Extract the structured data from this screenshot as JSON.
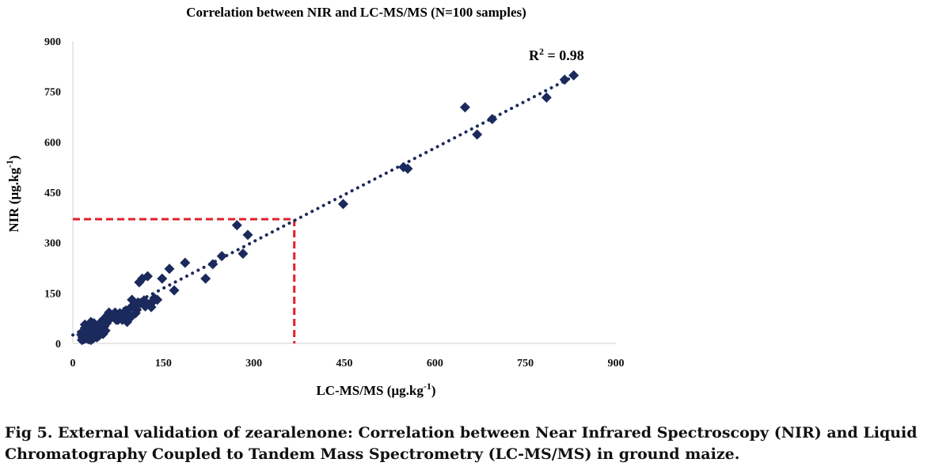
{
  "chart_data": {
    "type": "scatter",
    "title": "Correlation between NIR and LC-MS/MS (N=100 samples)",
    "xlabel": "LC-MS/MS (µg.kg",
    "xlabel_sup": "-1",
    "xlabel_end": ")",
    "ylabel": "NIR (µg.kg",
    "ylabel_sup": "-1",
    "ylabel_end": ")",
    "xlim": [
      0,
      900
    ],
    "ylim": [
      0,
      900
    ],
    "xticks": [
      "0",
      "150",
      "300",
      "450",
      "600",
      "750",
      "900"
    ],
    "yticks": [
      "0",
      "150",
      "300",
      "450",
      "600",
      "750",
      "900"
    ],
    "grid": false,
    "legend": "none",
    "marker_color": "#1b2a5c",
    "trendline": {
      "style": "dotted",
      "color": "#1b2a5c",
      "x": [
        0,
        835
      ],
      "y": [
        25,
        800
      ]
    },
    "r2_label": "R",
    "r2_sup": "2",
    "r2_value": " = 0.98",
    "reference_lines": {
      "style": "dashed",
      "color": "#e0202a",
      "x": 367,
      "y": 370
    },
    "points": [
      [
        830,
        798
      ],
      [
        815,
        785
      ],
      [
        785,
        732
      ],
      [
        695,
        668
      ],
      [
        670,
        622
      ],
      [
        650,
        703
      ],
      [
        555,
        520
      ],
      [
        548,
        525
      ],
      [
        448,
        415
      ],
      [
        290,
        323
      ],
      [
        272,
        352
      ],
      [
        282,
        267
      ],
      [
        247,
        260
      ],
      [
        232,
        236
      ],
      [
        220,
        193
      ],
      [
        186,
        240
      ],
      [
        168,
        158
      ],
      [
        160,
        222
      ],
      [
        148,
        193
      ],
      [
        135,
        135
      ],
      [
        130,
        108
      ],
      [
        124,
        200
      ],
      [
        115,
        193
      ],
      [
        110,
        182
      ],
      [
        118,
        128
      ],
      [
        108,
        122
      ],
      [
        100,
        112
      ],
      [
        95,
        105
      ],
      [
        98,
        130
      ],
      [
        88,
        98
      ],
      [
        85,
        84
      ],
      [
        80,
        78
      ],
      [
        75,
        70
      ],
      [
        70,
        92
      ],
      [
        65,
        82
      ],
      [
        60,
        92
      ],
      [
        58,
        85
      ],
      [
        55,
        77
      ],
      [
        50,
        70
      ],
      [
        48,
        55
      ],
      [
        52,
        40
      ],
      [
        45,
        30
      ],
      [
        46,
        62
      ],
      [
        42,
        52
      ],
      [
        40,
        45
      ],
      [
        38,
        35
      ],
      [
        36,
        25
      ],
      [
        35,
        60
      ],
      [
        33,
        48
      ],
      [
        32,
        38
      ],
      [
        30,
        28
      ],
      [
        30,
        64
      ],
      [
        28,
        55
      ],
      [
        28,
        20
      ],
      [
        26,
        42
      ],
      [
        25,
        32
      ],
      [
        24,
        50
      ],
      [
        22,
        24
      ],
      [
        22,
        15
      ],
      [
        20,
        38
      ],
      [
        20,
        46
      ],
      [
        18,
        28
      ],
      [
        16,
        18
      ],
      [
        16,
        35
      ],
      [
        15,
        10
      ],
      [
        14,
        26
      ],
      [
        34,
        15
      ],
      [
        40,
        18
      ],
      [
        44,
        24
      ],
      [
        50,
        28
      ],
      [
        52,
        50
      ],
      [
        56,
        60
      ],
      [
        62,
        74
      ],
      [
        68,
        84
      ],
      [
        72,
        70
      ],
      [
        78,
        90
      ],
      [
        90,
        64
      ],
      [
        82,
        70
      ],
      [
        92,
        86
      ],
      [
        104,
        90
      ],
      [
        112,
        120
      ],
      [
        120,
        110
      ],
      [
        128,
        118
      ],
      [
        134,
        127
      ],
      [
        140,
        130
      ],
      [
        106,
        100
      ],
      [
        96,
        78
      ],
      [
        86,
        76
      ],
      [
        76,
        76
      ],
      [
        66,
        80
      ],
      [
        26,
        12
      ],
      [
        30,
        10
      ],
      [
        18,
        12
      ],
      [
        24,
        18
      ],
      [
        38,
        20
      ],
      [
        42,
        40
      ],
      [
        36,
        55
      ],
      [
        47,
        35
      ],
      [
        54,
        38
      ],
      [
        20,
        56
      ]
    ]
  },
  "caption": {
    "line1": "Fig 5.  External validation of zearalenone: Correlation between Near Infrared Spectroscopy (NIR) and Liquid",
    "line2": "Chromatography Coupled to Tandem Mass Spectrometry (LC-MS/MS) in ground maize."
  }
}
